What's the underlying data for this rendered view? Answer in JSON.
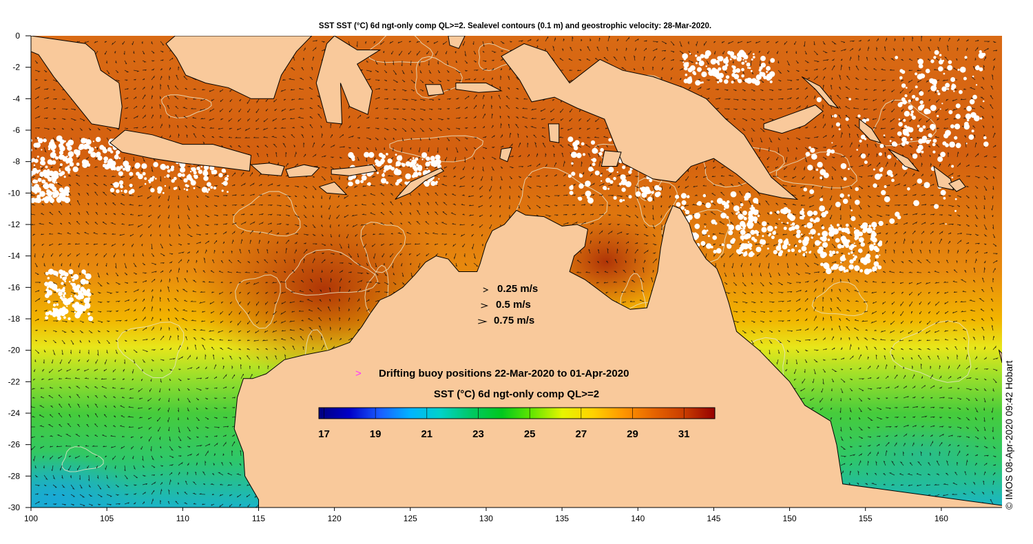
{
  "title": "SST SST (°C) 6d ngt-only comp QL>=2. Sealevel contours (0.1 m) and geostrophic velocity: 28-Mar-2020.",
  "credit": "© IMOS 08-Apr-2020 09:42 Hobart",
  "colors": {
    "land": "#f9c99b",
    "cloud": "#ffffff",
    "coast": "#000000",
    "contour": "#e8e4c8",
    "arrow": "#111111",
    "buoy_marker": "#ff33ff"
  },
  "velocity_legend": [
    {
      "speed": 0.25,
      "label": "0.25 m/s"
    },
    {
      "speed": 0.5,
      "label": "0.5 m/s"
    },
    {
      "speed": 0.75,
      "label": "0.75 m/s"
    }
  ],
  "buoy_legend": {
    "marker": ">",
    "label": "Drifting buoy positions 22-Mar-2020 to 01-Apr-2020"
  },
  "colorbar": {
    "title": "SST (°C) 6d ngt-only comp QL>=2",
    "min": 16.8,
    "max": 32.2,
    "ticks": [
      17,
      19,
      21,
      23,
      25,
      27,
      29,
      31
    ],
    "colormap": [
      "#00007f",
      "#0000c8",
      "#1a5cff",
      "#00b4ff",
      "#00d2c8",
      "#00c864",
      "#00c81e",
      "#64e600",
      "#e6f500",
      "#ffd200",
      "#ff9600",
      "#e66400",
      "#c83c00",
      "#960000"
    ]
  },
  "map": {
    "lon_range": [
      100,
      164
    ],
    "lat_range": [
      -30,
      0
    ],
    "x_ticks": [
      100,
      105,
      110,
      115,
      120,
      125,
      130,
      135,
      140,
      145,
      150,
      155,
      160
    ],
    "y_ticks": [
      0,
      -2,
      -4,
      -6,
      -8,
      -10,
      -12,
      -14,
      -16,
      -18,
      -20,
      -22,
      -24,
      -26,
      -28,
      -30
    ]
  }
}
